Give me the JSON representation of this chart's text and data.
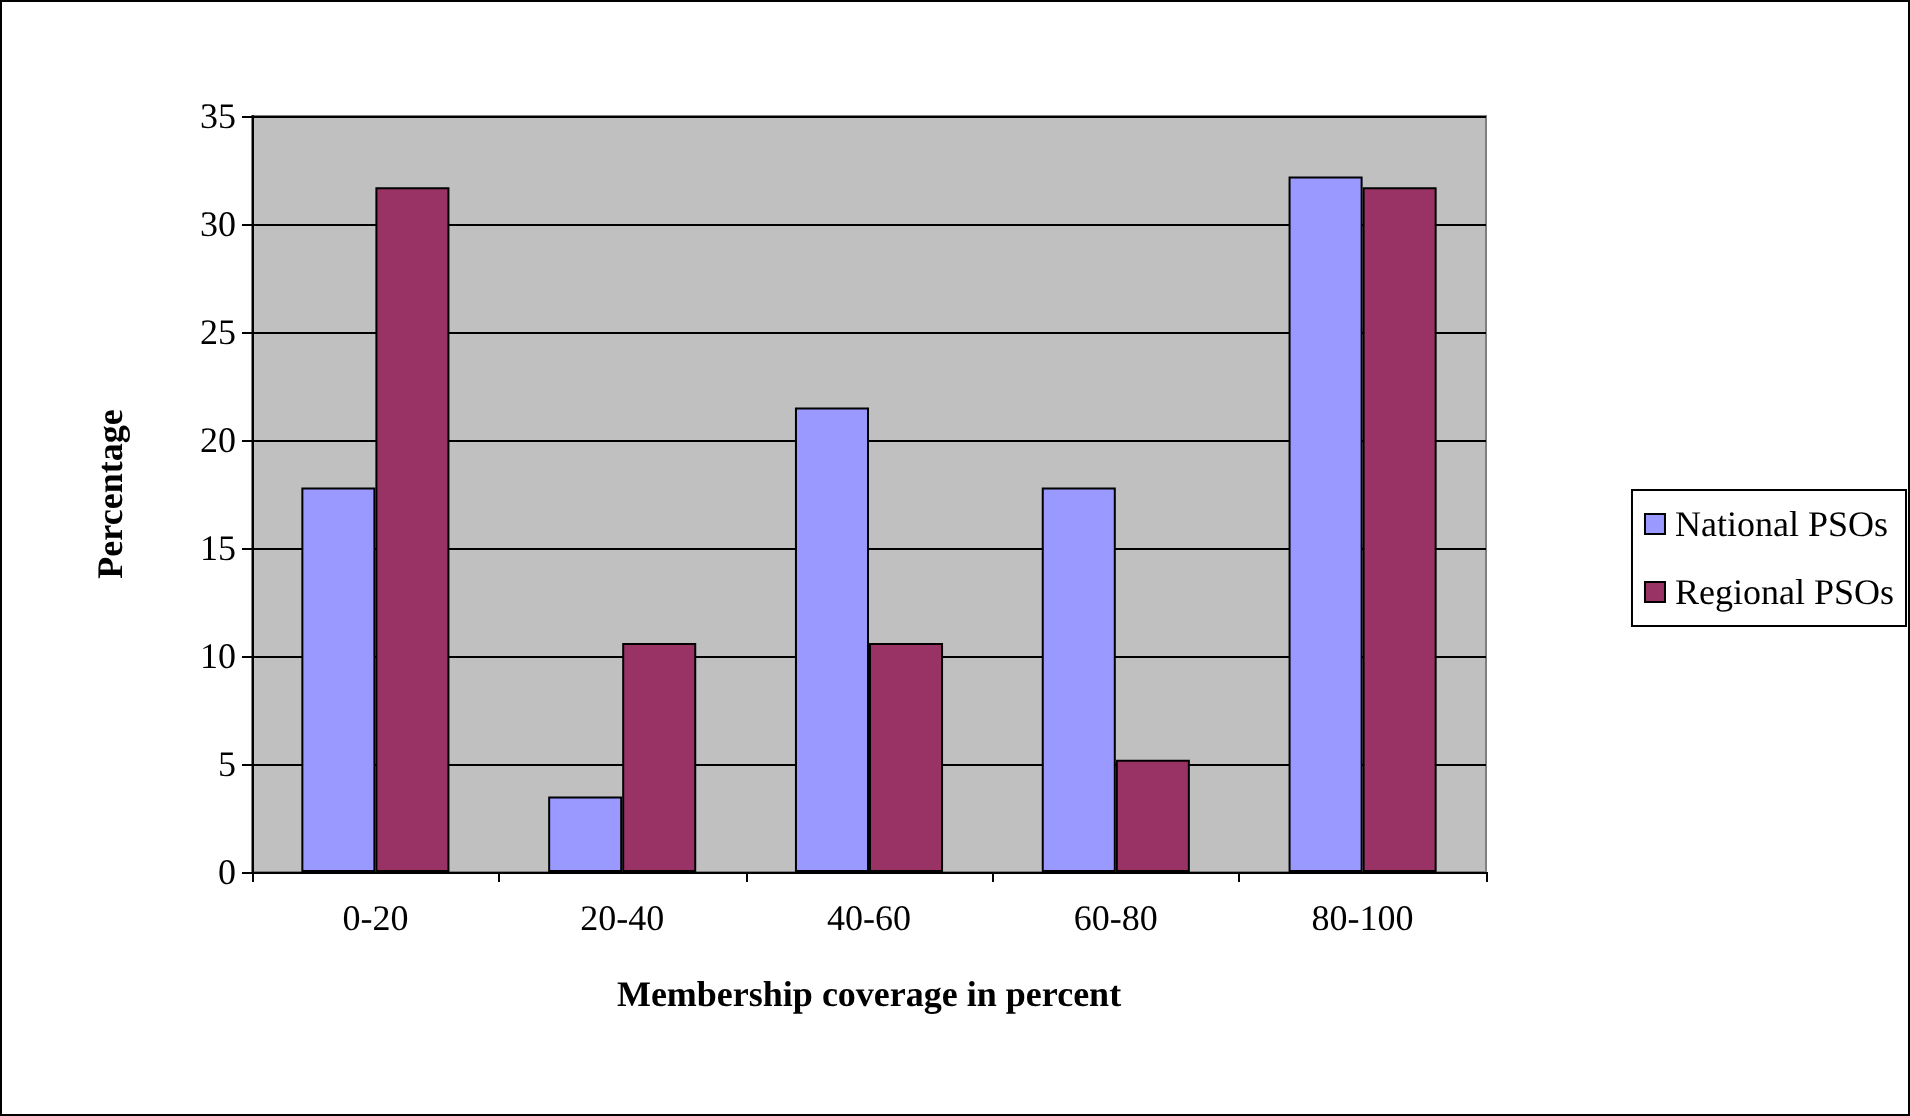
{
  "chart_data": {
    "type": "bar",
    "xlabel": "Membership coverage in percent",
    "ylabel": "Percentage",
    "categories": [
      "0-20",
      "20-40",
      "40-60",
      "60-80",
      "80-100"
    ],
    "series": [
      {
        "name": "National PSOs",
        "color": "#9999ff",
        "values": [
          17.8,
          3.5,
          21.5,
          17.8,
          32.2
        ]
      },
      {
        "name": "Regional PSOs",
        "color": "#993366",
        "values": [
          31.7,
          10.6,
          10.6,
          5.2,
          31.7
        ]
      }
    ],
    "ylim": [
      0,
      35
    ],
    "yticks": [
      0,
      5,
      10,
      15,
      20,
      25,
      30,
      35
    ],
    "grid": "y",
    "legend": "right"
  }
}
